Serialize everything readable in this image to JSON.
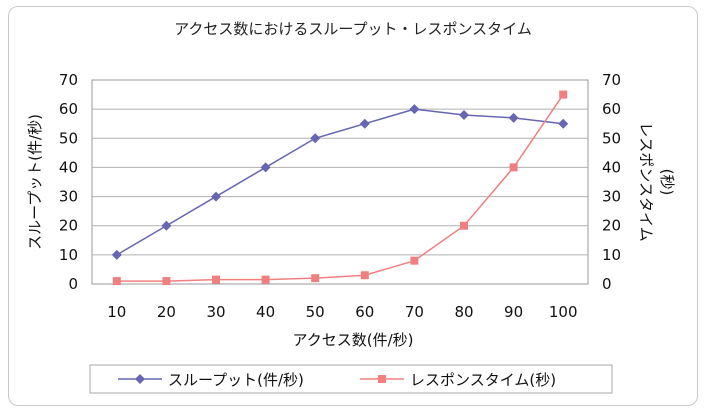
{
  "chart_data": {
    "type": "line",
    "title": "アクセス数におけるスループット・レスポンスタイム",
    "xlabel": "アクセス数(件/秒)",
    "ylabel_left": "スループット(件/秒)",
    "ylabel_right_line1": "レスポンスタイム",
    "ylabel_right_line2": "(秒)",
    "categories": [
      "10",
      "20",
      "30",
      "40",
      "50",
      "60",
      "70",
      "80",
      "90",
      "100"
    ],
    "y_ticks": [
      "0",
      "10",
      "20",
      "30",
      "40",
      "50",
      "60",
      "70"
    ],
    "ylim": [
      0,
      70
    ],
    "grid": true,
    "legend_position": "bottom",
    "series": [
      {
        "name": "スループット(件/秒)",
        "axis": "left",
        "marker": "diamond",
        "color": "#6666b2",
        "values": [
          10,
          20,
          30,
          40,
          50,
          55,
          60,
          58,
          57,
          55
        ]
      },
      {
        "name": "レスポンスタイム(秒)",
        "axis": "right",
        "marker": "square",
        "color": "#f08080",
        "values": [
          1,
          1,
          1.5,
          1.5,
          2,
          3,
          8,
          20,
          40,
          65
        ]
      }
    ]
  }
}
